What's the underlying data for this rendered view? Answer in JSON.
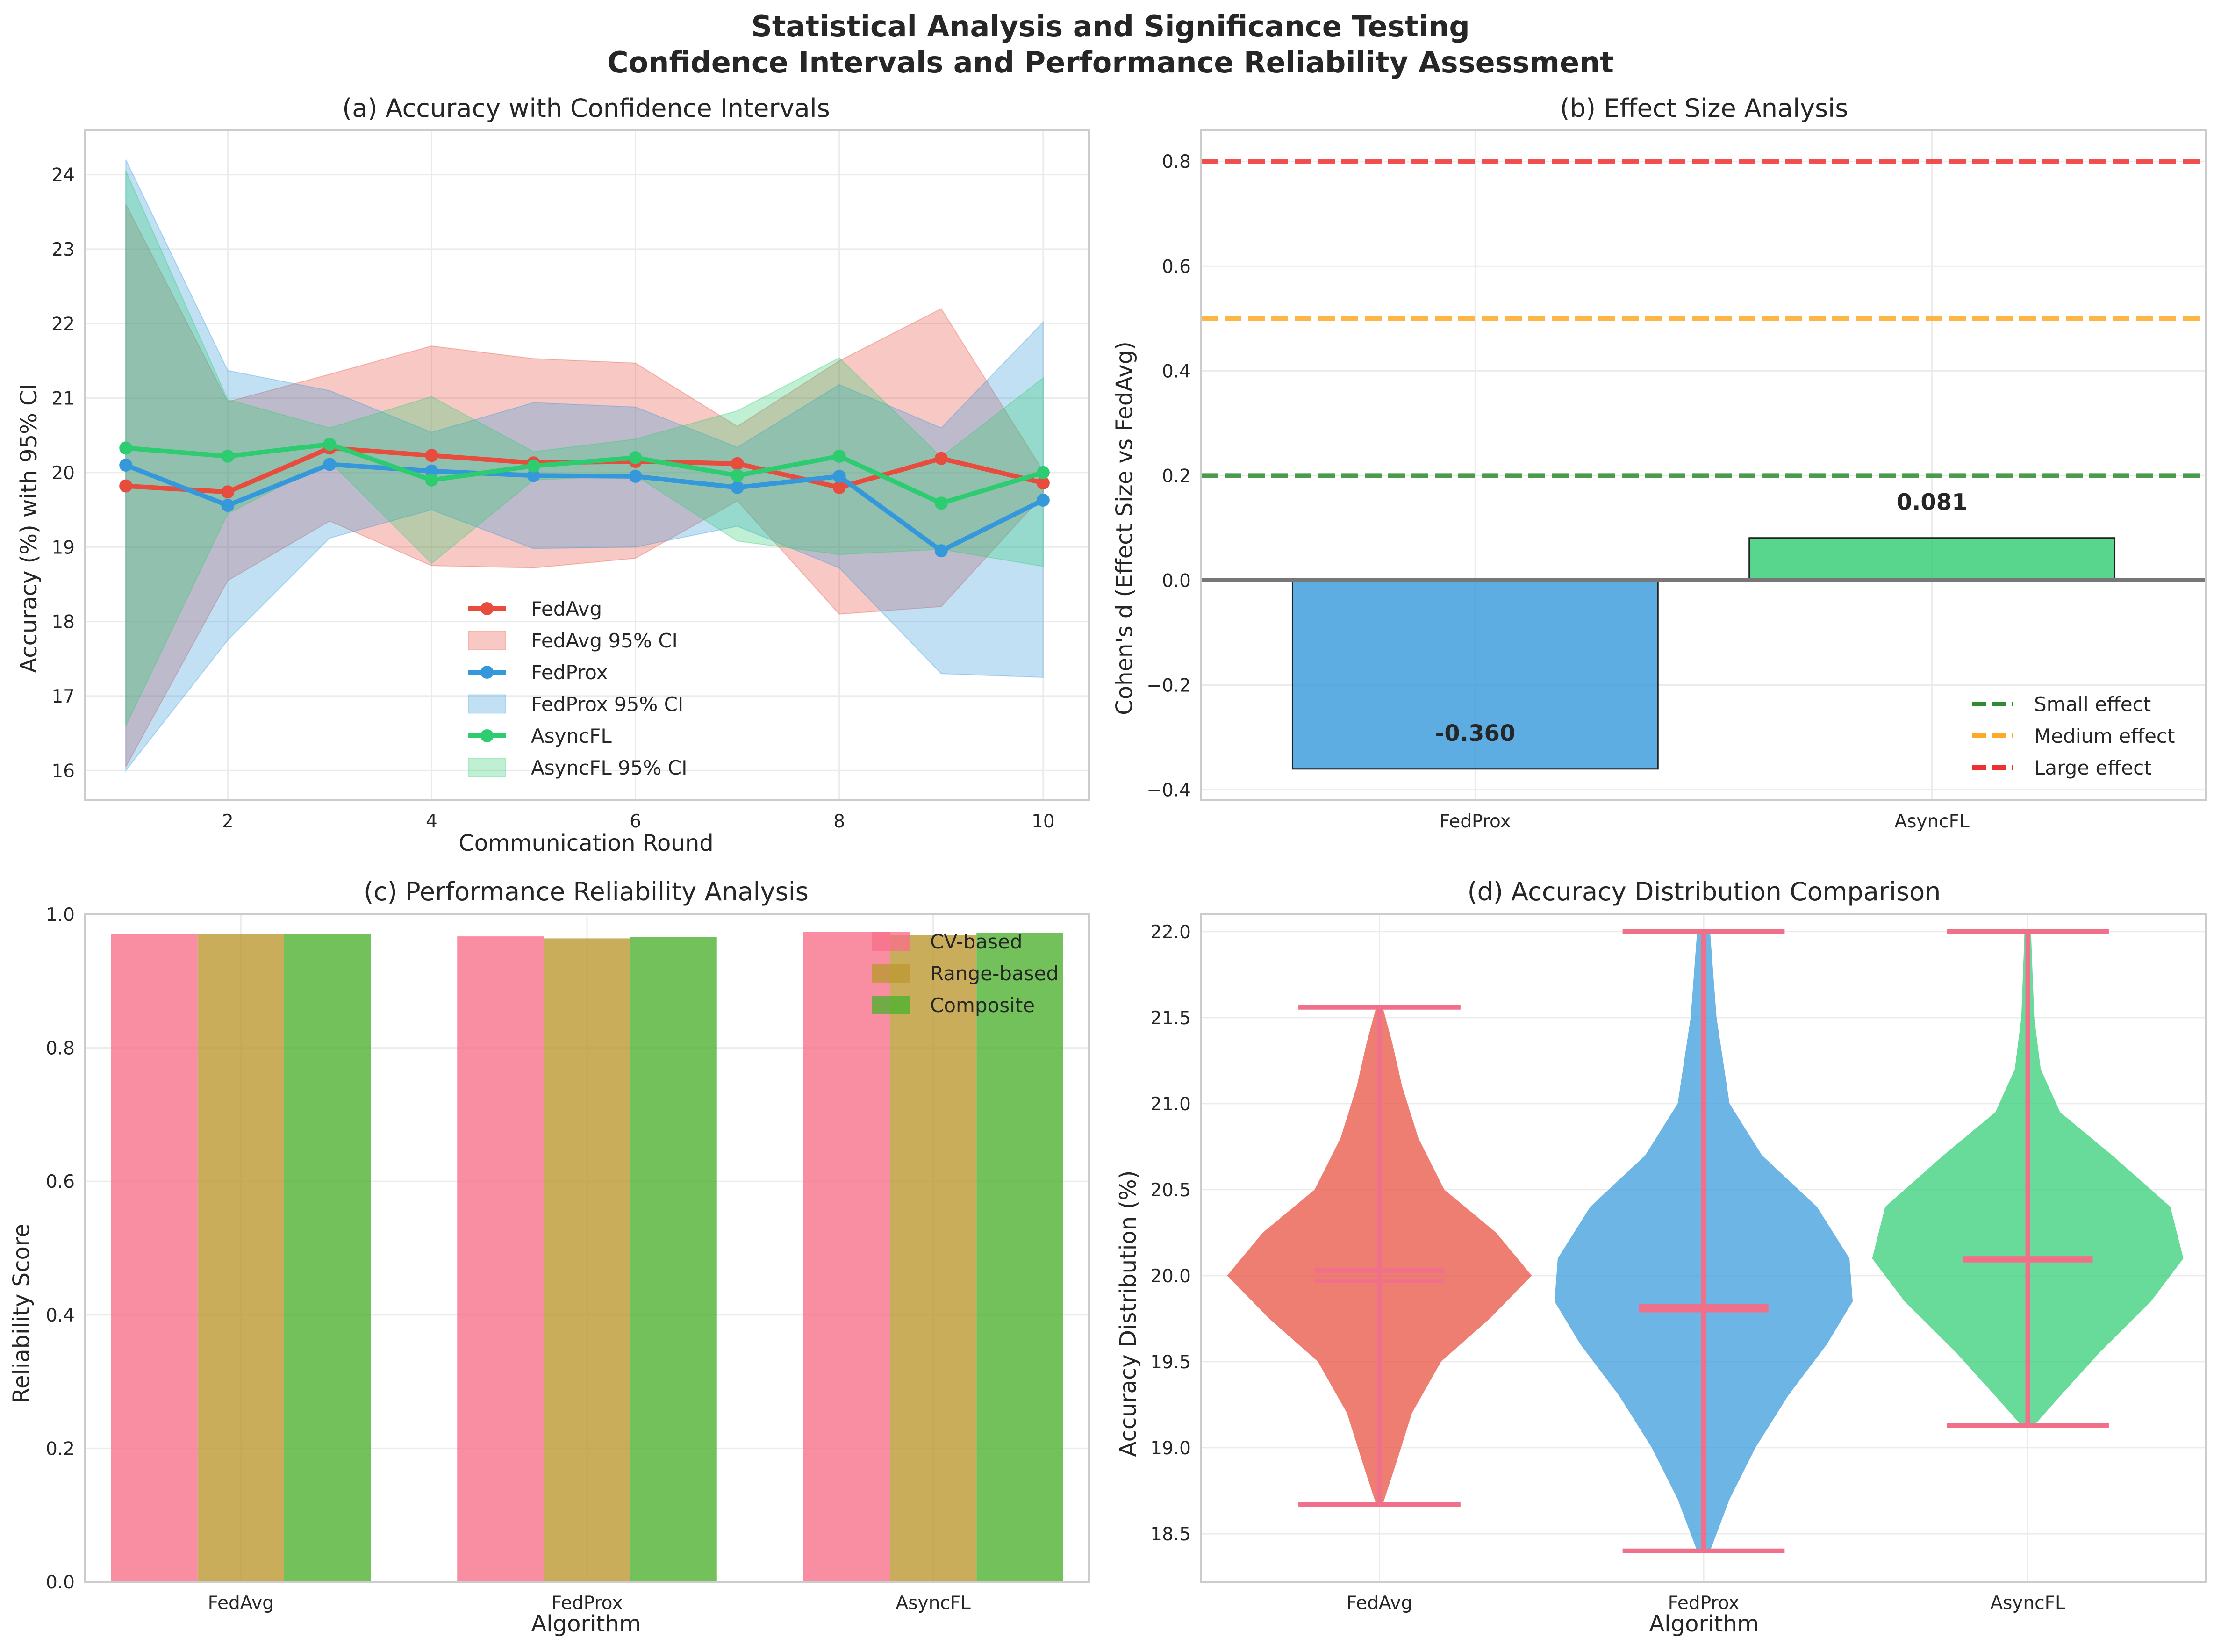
{
  "figure": {
    "title_line1": "Statistical Analysis and Significance Testing",
    "title_line2": "Confidence Intervals and Performance Reliability Assessment"
  },
  "colors": {
    "FedAvg": "#e74c3c",
    "FedProx": "#3498db",
    "AsyncFL": "#2ecc71",
    "small": "#2e8b2e",
    "medium": "#ffa726",
    "large": "#f03030",
    "cv": "#f77189",
    "range": "#bb9832",
    "composite": "#50b131",
    "violin_lines": "#f0708a"
  },
  "chart_data": [
    {
      "type": "line",
      "title": "(a) Accuracy with Confidence Intervals",
      "xlabel": "Communication Round",
      "ylabel": "Accuracy (%) with 95% CI",
      "xlim": [
        0.6,
        10.45
      ],
      "ylim": [
        15.6,
        24.6
      ],
      "xticks": [
        2,
        4,
        6,
        8,
        10
      ],
      "yticks": [
        16,
        17,
        18,
        19,
        20,
        21,
        22,
        23,
        24
      ],
      "grid": true,
      "legend_position": "lower-center",
      "x": [
        1,
        2,
        3,
        4,
        5,
        6,
        7,
        8,
        9,
        10
      ],
      "series": [
        {
          "name": "FedAvg",
          "ci_name": "FedAvg 95% CI",
          "values": [
            19.82,
            19.74,
            20.33,
            20.23,
            20.13,
            20.15,
            20.12,
            19.8,
            20.19,
            19.86
          ],
          "lower": [
            16.05,
            18.55,
            19.35,
            18.75,
            18.72,
            18.85,
            19.62,
            18.1,
            18.2,
            19.7
          ],
          "upper": [
            23.6,
            20.95,
            21.32,
            21.7,
            21.53,
            21.47,
            20.62,
            21.5,
            22.2,
            20.02
          ]
        },
        {
          "name": "FedProx",
          "ci_name": "FedProx 95% CI",
          "values": [
            20.1,
            19.56,
            20.11,
            20.02,
            19.96,
            19.95,
            19.8,
            19.95,
            18.95,
            19.63
          ],
          "lower": [
            16.0,
            17.75,
            19.12,
            19.5,
            18.98,
            19.0,
            19.28,
            18.72,
            17.3,
            17.25
          ],
          "upper": [
            24.2,
            21.37,
            21.1,
            20.54,
            20.94,
            20.88,
            20.34,
            21.18,
            20.6,
            22.02
          ]
        },
        {
          "name": "AsyncFL",
          "ci_name": "AsyncFL 95% CI",
          "values": [
            20.33,
            20.22,
            20.38,
            19.9,
            20.09,
            20.2,
            19.96,
            20.22,
            19.59,
            20.0
          ],
          "lower": [
            16.6,
            19.45,
            20.15,
            18.78,
            19.9,
            19.96,
            19.08,
            18.9,
            18.97,
            18.74
          ],
          "upper": [
            24.05,
            20.98,
            20.6,
            21.02,
            20.28,
            20.45,
            20.83,
            21.54,
            20.21,
            21.27
          ]
        }
      ]
    },
    {
      "type": "bar",
      "title": "(b) Effect Size Analysis",
      "xlabel": "",
      "ylabel": "Cohen's d (Effect Size vs FedAvg)",
      "categories": [
        "FedProx",
        "AsyncFL"
      ],
      "values": [
        -0.36,
        0.081
      ],
      "value_labels": [
        "-0.360",
        "0.081"
      ],
      "ylim": [
        -0.42,
        0.86
      ],
      "yticks": [
        -0.4,
        -0.2,
        0.0,
        0.2,
        0.4,
        0.6,
        0.8
      ],
      "ytick_labels": [
        "−0.4",
        "−0.2",
        "0.0",
        "0.2",
        "0.4",
        "0.6",
        "0.8"
      ],
      "grid": true,
      "legend_position": "lower-right",
      "reference_lines": [
        {
          "name": "Small effect",
          "value": 0.2
        },
        {
          "name": "Medium effect",
          "value": 0.5
        },
        {
          "name": "Large effect",
          "value": 0.8
        }
      ]
    },
    {
      "type": "bar",
      "title": "(c) Performance Reliability Analysis",
      "xlabel": "Algorithm",
      "ylabel": "Reliability Score",
      "categories": [
        "FedAvg",
        "FedProx",
        "AsyncFL"
      ],
      "ylim": [
        0,
        1.0
      ],
      "yticks": [
        0.0,
        0.2,
        0.4,
        0.6,
        0.8,
        1.0
      ],
      "grid": true,
      "legend_position": "top-right",
      "series": [
        {
          "name": "CV-based",
          "values": [
            0.971,
            0.967,
            0.974
          ]
        },
        {
          "name": "Range-based",
          "values": [
            0.97,
            0.964,
            0.969
          ]
        },
        {
          "name": "Composite",
          "values": [
            0.97,
            0.966,
            0.972
          ]
        }
      ]
    },
    {
      "type": "violin",
      "title": "(d) Accuracy Distribution Comparison",
      "xlabel": "Algorithm",
      "ylabel": "Accuracy Distribution (%)",
      "categories": [
        "FedAvg",
        "FedProx",
        "AsyncFL"
      ],
      "ylim": [
        18.22,
        22.1
      ],
      "yticks": [
        18.5,
        19.0,
        19.5,
        20.0,
        20.5,
        21.0,
        21.5,
        22.0
      ],
      "grid": true,
      "violins": [
        {
          "name": "FedAvg",
          "min": 18.67,
          "max": 21.56,
          "mean": 20.03,
          "median": 19.97,
          "profile": [
            [
              18.67,
              0.01
            ],
            [
              18.9,
              0.05
            ],
            [
              19.2,
              0.1
            ],
            [
              19.5,
              0.19
            ],
            [
              19.75,
              0.34
            ],
            [
              20.0,
              0.47
            ],
            [
              20.25,
              0.36
            ],
            [
              20.5,
              0.2
            ],
            [
              20.8,
              0.12
            ],
            [
              21.1,
              0.07
            ],
            [
              21.35,
              0.04
            ],
            [
              21.56,
              0.01
            ]
          ]
        },
        {
          "name": "FedProx",
          "min": 18.4,
          "max": 22.0,
          "mean": 19.82,
          "median": 19.8,
          "profile": [
            [
              18.4,
              0.02
            ],
            [
              18.7,
              0.08
            ],
            [
              19.0,
              0.16
            ],
            [
              19.3,
              0.26
            ],
            [
              19.6,
              0.38
            ],
            [
              19.85,
              0.46
            ],
            [
              20.1,
              0.45
            ],
            [
              20.4,
              0.35
            ],
            [
              20.7,
              0.18
            ],
            [
              21.0,
              0.08
            ],
            [
              21.5,
              0.04
            ],
            [
              22.0,
              0.02
            ]
          ]
        },
        {
          "name": "AsyncFL",
          "min": 19.13,
          "max": 22.0,
          "mean": 20.1,
          "median": 20.09,
          "profile": [
            [
              19.13,
              0.02
            ],
            [
              19.3,
              0.1
            ],
            [
              19.55,
              0.22
            ],
            [
              19.85,
              0.38
            ],
            [
              20.1,
              0.48
            ],
            [
              20.4,
              0.44
            ],
            [
              20.7,
              0.26
            ],
            [
              20.95,
              0.1
            ],
            [
              21.2,
              0.04
            ],
            [
              21.5,
              0.02
            ],
            [
              22.0,
              0.01
            ]
          ]
        }
      ]
    }
  ]
}
